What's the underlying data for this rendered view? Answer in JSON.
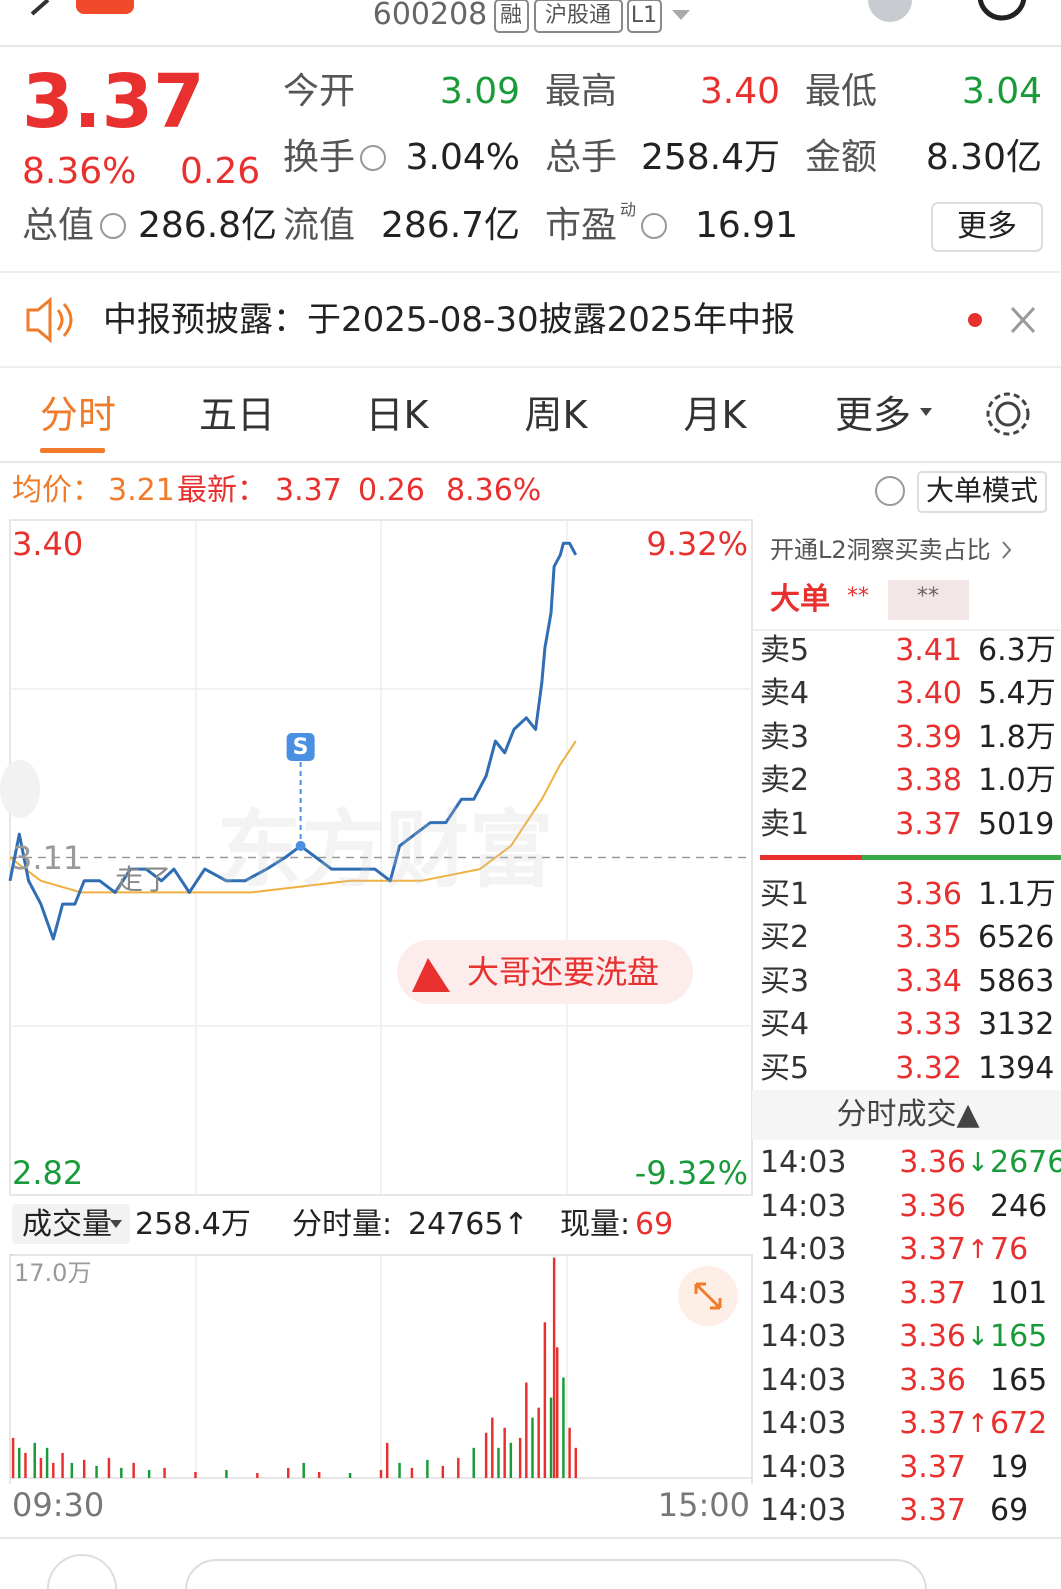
{
  "header": {
    "code": "600208",
    "tags": [
      "融",
      "沪股通",
      "L1"
    ]
  },
  "quote": {
    "price": "3.37",
    "change_pct": "8.36%",
    "change": "0.26",
    "fields": [
      {
        "label": "今开",
        "value": "3.09"
      },
      {
        "label": "最高",
        "value": "3.40"
      },
      {
        "label": "最低",
        "value": "3.04"
      },
      {
        "label": "换手",
        "value": "3.04%"
      },
      {
        "label": "总手",
        "value": "258.4万"
      },
      {
        "label": "金额",
        "value": "8.30亿"
      },
      {
        "label": "总值",
        "value": "286.8亿"
      },
      {
        "label": "流值",
        "value": "286.7亿"
      },
      {
        "label": "市盈",
        "sup": "动",
        "value": "16.91"
      }
    ],
    "more": "更多"
  },
  "notice": "中报预披露：于2025-08-30披露2025年中报",
  "tabs": [
    "分时",
    "五日",
    "日K",
    "周K",
    "月K",
    "更多"
  ],
  "info_bar": {
    "avg_label": "均价：",
    "avg": "3.21",
    "latest_label": "最新：",
    "latest": "3.37",
    "change": "0.26",
    "pct": "8.36%",
    "mode": "大单模式"
  },
  "overlay": {
    "watermark": "东方财富",
    "comment": "走了",
    "promo": "大哥还要洗盘"
  },
  "volume_header": {
    "label": "成交量",
    "total": "258.4万",
    "minute_label": "分时量:",
    "minute": "24765↑",
    "now_label": "现量:",
    "now": "69"
  },
  "order_book": {
    "promo": "开通L2洞察买卖占比",
    "big_label": "大单",
    "big_buy": "**",
    "big_sell": "**",
    "sell": [
      {
        "label": "卖5",
        "price": "3.41",
        "volume": "6.3万"
      },
      {
        "label": "卖4",
        "price": "3.40",
        "volume": "5.4万"
      },
      {
        "label": "卖3",
        "price": "3.39",
        "volume": "1.8万"
      },
      {
        "label": "卖2",
        "price": "3.38",
        "volume": "1.0万"
      },
      {
        "label": "卖1",
        "price": "3.37",
        "volume": "5019"
      }
    ],
    "buy": [
      {
        "label": "买1",
        "price": "3.36",
        "volume": "1.1万"
      },
      {
        "label": "买2",
        "price": "3.35",
        "volume": "6526"
      },
      {
        "label": "买3",
        "price": "3.34",
        "volume": "5863"
      },
      {
        "label": "买4",
        "price": "3.33",
        "volume": "3132"
      },
      {
        "label": "买5",
        "price": "3.32",
        "volume": "1394"
      }
    ]
  },
  "ticks": {
    "title": "分时成交▲",
    "rows": [
      {
        "time": "14:03",
        "price": "3.36",
        "dir": "↓",
        "volume": "2676"
      },
      {
        "time": "14:03",
        "price": "3.36",
        "volume": "246"
      },
      {
        "time": "14:03",
        "price": "3.37",
        "dir": "↑",
        "volume": "76"
      },
      {
        "time": "14:03",
        "price": "3.37",
        "volume": "101"
      },
      {
        "time": "14:03",
        "price": "3.36",
        "dir": "↓",
        "volume": "165"
      },
      {
        "time": "14:03",
        "price": "3.36",
        "volume": "165"
      },
      {
        "time": "14:03",
        "price": "3.37",
        "dir": "↑",
        "volume": "672"
      },
      {
        "time": "14:03",
        "price": "3.37",
        "volume": "19"
      },
      {
        "time": "14:03",
        "price": "3.37",
        "volume": "69"
      }
    ]
  },
  "chart_data": [
    {
      "type": "line",
      "xlim": [
        0,
        240
      ],
      "xticks": [
        {
          "value": 0,
          "label": "09:30"
        },
        {
          "value": 240,
          "label": "15:00"
        }
      ],
      "ylim": [
        2.82,
        3.4
      ],
      "yticks": [
        2.82,
        3.11,
        {
          "value": 3.4,
          "label": "3.40"
        }
      ],
      "y2lim": [
        -9.32,
        9.32
      ],
      "y2ticks": [
        {
          "value": -9.32,
          "label": "-9.32%"
        },
        {
          "value": 9.32,
          "label": "9.32%"
        }
      ],
      "series": [
        {
          "color": "#2f6db5",
          "x": [
            0,
            3,
            6,
            10,
            14,
            17,
            21,
            24,
            29,
            34,
            39,
            44,
            49,
            53,
            58,
            63,
            70,
            76,
            83,
            89,
            94,
            99,
            104,
            108,
            113,
            118,
            123,
            126,
            131,
            136,
            141,
            146,
            150,
            154,
            157,
            160,
            163,
            167,
            170,
            172,
            173,
            175,
            176,
            178,
            179,
            181,
            183
          ],
          "values": [
            3.09,
            3.13,
            3.09,
            3.07,
            3.04,
            3.07,
            3.07,
            3.09,
            3.09,
            3.08,
            3.1,
            3.1,
            3.09,
            3.1,
            3.08,
            3.1,
            3.09,
            3.09,
            3.1,
            3.11,
            3.12,
            3.11,
            3.1,
            3.1,
            3.1,
            3.1,
            3.09,
            3.12,
            3.13,
            3.14,
            3.14,
            3.16,
            3.16,
            3.18,
            3.21,
            3.2,
            3.22,
            3.23,
            3.22,
            3.26,
            3.29,
            3.32,
            3.36,
            3.37,
            3.38,
            3.38,
            3.37
          ]
        },
        {
          "color": "#f0b040",
          "x": [
            0,
            10,
            23,
            45,
            78,
            110,
            133,
            152,
            162,
            172,
            178,
            183
          ],
          "values": [
            3.11,
            3.09,
            3.08,
            3.08,
            3.08,
            3.09,
            3.09,
            3.1,
            3.12,
            3.16,
            3.19,
            3.21
          ]
        }
      ],
      "marker": {
        "label": "S",
        "x": 94,
        "value": 3.12
      }
    },
    {
      "type": "bar",
      "xlim": [
        0,
        240
      ],
      "ylim": [
        0,
        170000
      ],
      "yticks": [
        {
          "value": 170000,
          "label": "17.0万"
        }
      ],
      "up_color": "#e8312f",
      "down_color": "#1a9b3a",
      "x": [
        1,
        3,
        5,
        8,
        10,
        12,
        14,
        17,
        20,
        24,
        28,
        32,
        36,
        40,
        45,
        50,
        60,
        70,
        80,
        90,
        95,
        100,
        110,
        120,
        122,
        126,
        130,
        135,
        140,
        145,
        150,
        154,
        156,
        158,
        160,
        162,
        165,
        167,
        169,
        171,
        173,
        175,
        176,
        177,
        179,
        181,
        183
      ],
      "values": [
        30600,
        23000,
        19100,
        26800,
        15300,
        23000,
        11500,
        19100,
        11500,
        13800,
        9200,
        15300,
        7700,
        11500,
        6100,
        7700,
        4600,
        6100,
        3800,
        7700,
        11500,
        4600,
        3800,
        6100,
        26800,
        11500,
        7700,
        13800,
        9200,
        15300,
        23000,
        34500,
        46000,
        23000,
        38300,
        26800,
        30600,
        72800,
        46000,
        53600,
        118700,
        61300,
        168000,
        99600,
        76600,
        38300,
        23000
      ],
      "up": [
        true,
        false,
        true,
        false,
        true,
        false,
        true,
        true,
        false,
        true,
        false,
        true,
        false,
        true,
        false,
        true,
        true,
        false,
        true,
        true,
        false,
        true,
        false,
        true,
        true,
        false,
        true,
        false,
        true,
        true,
        false,
        true,
        true,
        false,
        true,
        false,
        true,
        true,
        false,
        true,
        true,
        false,
        true,
        true,
        false,
        true,
        true
      ]
    }
  ]
}
